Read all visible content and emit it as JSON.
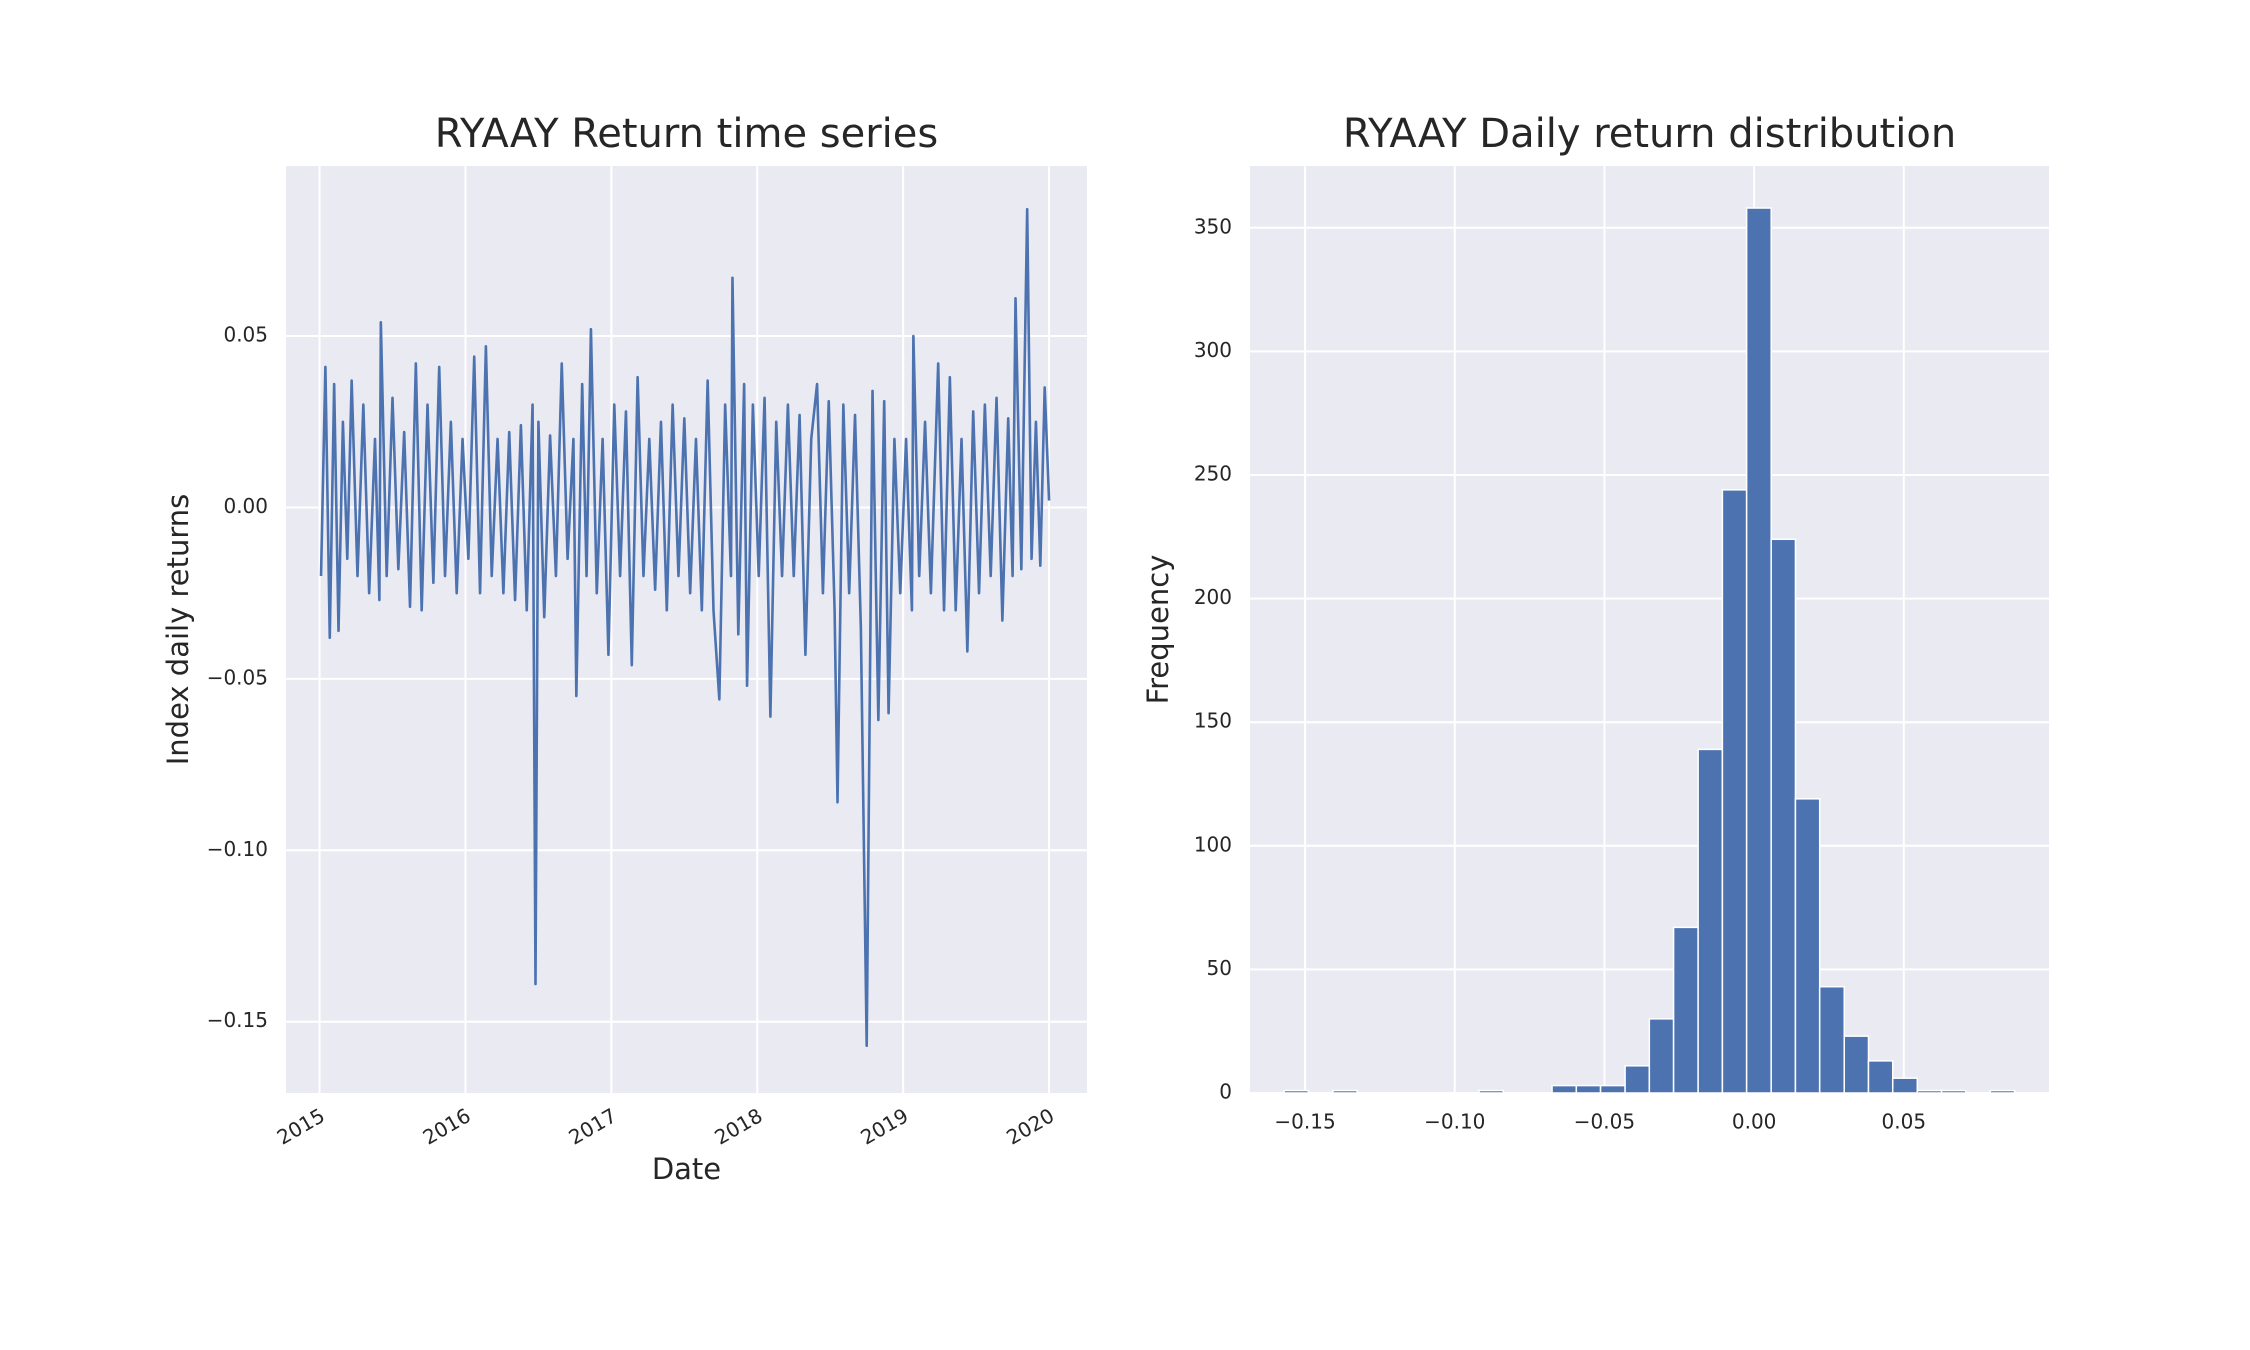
{
  "chart_data": [
    {
      "type": "line",
      "title": "RYAAY Return time series",
      "xlabel": "Date",
      "ylabel": "Index daily returns",
      "color": "#4c72b0",
      "grid": true,
      "xlim": [
        2014.77,
        2020.26
      ],
      "xticks": [
        2015,
        2016,
        2017,
        2018,
        2019,
        2020
      ],
      "ylim": [
        -0.1708,
        0.0996
      ],
      "yticks": [
        {
          "value": -0.15,
          "label": "−0.15"
        },
        {
          "value": -0.1,
          "label": "−0.10"
        },
        {
          "value": -0.05,
          "label": "−0.05"
        },
        {
          "value": 0,
          "label": "0.00"
        },
        {
          "value": 0.05,
          "label": "0.05"
        }
      ],
      "x": [
        2015.01,
        2015.04,
        2015.07,
        2015.1,
        2015.13,
        2015.16,
        2015.19,
        2015.22,
        2015.26,
        2015.3,
        2015.34,
        2015.38,
        2015.41,
        2015.42,
        2015.46,
        2015.5,
        2015.54,
        2015.58,
        2015.62,
        2015.66,
        2015.7,
        2015.74,
        2015.78,
        2015.82,
        2015.86,
        2015.9,
        2015.94,
        2015.98,
        2016.02,
        2016.06,
        2016.1,
        2016.14,
        2016.18,
        2016.22,
        2016.26,
        2016.3,
        2016.34,
        2016.38,
        2016.42,
        2016.46,
        2016.48,
        2016.5,
        2016.54,
        2016.58,
        2016.62,
        2016.66,
        2016.7,
        2016.74,
        2016.76,
        2016.8,
        2016.83,
        2016.86,
        2016.9,
        2016.94,
        2016.98,
        2017.02,
        2017.06,
        2017.1,
        2017.14,
        2017.18,
        2017.22,
        2017.26,
        2017.3,
        2017.34,
        2017.38,
        2017.42,
        2017.46,
        2017.5,
        2017.54,
        2017.58,
        2017.62,
        2017.66,
        2017.7,
        2017.74,
        2017.78,
        2017.82,
        2017.83,
        2017.87,
        2017.91,
        2017.93,
        2017.97,
        2018.01,
        2018.05,
        2018.09,
        2018.13,
        2018.17,
        2018.21,
        2018.25,
        2018.29,
        2018.33,
        2018.37,
        2018.41,
        2018.45,
        2018.49,
        2018.53,
        2018.55,
        2018.59,
        2018.63,
        2018.67,
        2018.71,
        2018.75,
        2018.79,
        2018.83,
        2018.87,
        2018.9,
        2018.94,
        2018.98,
        2019.02,
        2019.06,
        2019.07,
        2019.11,
        2019.15,
        2019.19,
        2019.24,
        2019.28,
        2019.32,
        2019.36,
        2019.4,
        2019.44,
        2019.48,
        2019.52,
        2019.56,
        2019.6,
        2019.64,
        2019.68,
        2019.72,
        2019.75,
        2019.77,
        2019.81,
        2019.85,
        2019.88,
        2019.91,
        2019.94,
        2019.97,
        2020.0
      ],
      "values": [
        -0.02,
        0.041,
        -0.038,
        0.036,
        -0.036,
        0.025,
        -0.015,
        0.037,
        -0.02,
        0.03,
        -0.025,
        0.02,
        -0.027,
        0.054,
        -0.02,
        0.032,
        -0.018,
        0.022,
        -0.029,
        0.042,
        -0.03,
        0.03,
        -0.022,
        0.041,
        -0.02,
        0.025,
        -0.025,
        0.02,
        -0.015,
        0.044,
        -0.025,
        0.047,
        -0.02,
        0.02,
        -0.025,
        0.022,
        -0.027,
        0.024,
        -0.03,
        0.03,
        -0.139,
        0.025,
        -0.032,
        0.021,
        -0.02,
        0.042,
        -0.015,
        0.02,
        -0.055,
        0.036,
        -0.02,
        0.052,
        -0.025,
        0.02,
        -0.043,
        0.03,
        -0.02,
        0.028,
        -0.046,
        0.038,
        -0.02,
        0.02,
        -0.024,
        0.025,
        -0.03,
        0.03,
        -0.02,
        0.026,
        -0.025,
        0.02,
        -0.03,
        0.037,
        -0.03,
        -0.056,
        0.03,
        -0.02,
        0.067,
        -0.037,
        0.036,
        -0.052,
        0.03,
        -0.02,
        0.032,
        -0.061,
        0.025,
        -0.02,
        0.03,
        -0.02,
        0.027,
        -0.043,
        0.02,
        0.036,
        -0.025,
        0.031,
        -0.03,
        -0.086,
        0.03,
        -0.025,
        0.027,
        -0.035,
        -0.157,
        0.034,
        -0.062,
        0.031,
        -0.06,
        0.02,
        -0.025,
        0.02,
        -0.03,
        0.05,
        -0.02,
        0.025,
        -0.025,
        0.042,
        -0.03,
        0.038,
        -0.03,
        0.02,
        -0.042,
        0.028,
        -0.025,
        0.03,
        -0.02,
        0.032,
        -0.033,
        0.026,
        -0.02,
        0.061,
        -0.018,
        0.087,
        -0.015,
        0.025,
        -0.017,
        0.035,
        0.002
      ]
    },
    {
      "type": "histogram",
      "title": "RYAAY Daily return distribution",
      "ylabel": "Frequency",
      "color": "#4c72b0",
      "grid": true,
      "xlim": [
        -0.1684,
        0.0985
      ],
      "xticks": [
        {
          "value": -0.15,
          "label": "−0.15"
        },
        {
          "value": -0.1,
          "label": "−0.10"
        },
        {
          "value": -0.05,
          "label": "−0.05"
        },
        {
          "value": 0,
          "label": "0.00"
        },
        {
          "value": 0.05,
          "label": "0.05"
        }
      ],
      "ylim": [
        0,
        375
      ],
      "yticks": [
        0,
        50,
        100,
        150,
        200,
        250,
        300,
        350
      ],
      "bins": [
        -0.157,
        -0.1489,
        -0.1407,
        -0.1326,
        -0.1245,
        -0.1163,
        -0.1082,
        -0.1001,
        -0.0919,
        -0.0838,
        -0.0757,
        -0.0675,
        -0.0594,
        -0.0513,
        -0.0431,
        -0.035,
        -0.0269,
        -0.0187,
        -0.0106,
        -0.0025,
        0.0057,
        0.0138,
        0.0219,
        0.0301,
        0.0382,
        0.0463,
        0.0545,
        0.0626,
        0.0707,
        0.0789,
        0.087
      ],
      "values": [
        1,
        0,
        1,
        0,
        0,
        0,
        0,
        0,
        1,
        0,
        0,
        3,
        3,
        3,
        11,
        30,
        67,
        139,
        244,
        358,
        224,
        119,
        43,
        23,
        13,
        6,
        1,
        1,
        0,
        1
      ]
    }
  ]
}
